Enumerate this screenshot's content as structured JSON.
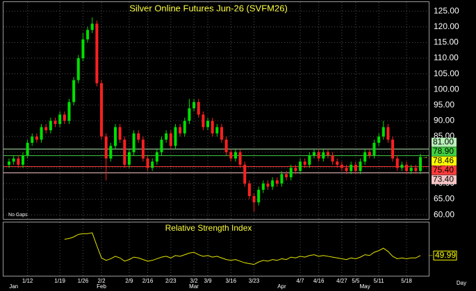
{
  "chart_data": {
    "type": "candlestick",
    "title": "Silver Online Futures Jun-26 (SVFM26)",
    "note": "No Gaps",
    "x_unit": "Day",
    "categories": [
      null,
      null,
      null,
      null,
      "1/12",
      null,
      null,
      null,
      null,
      null,
      null,
      "1/19",
      null,
      null,
      null,
      null,
      "1/26",
      null,
      null,
      null,
      "2/2",
      null,
      null,
      null,
      null,
      null,
      "2/9",
      null,
      null,
      null,
      "2/16",
      null,
      null,
      null,
      null,
      "2/23",
      null,
      null,
      null,
      null,
      "3/2",
      null,
      null,
      "3/9",
      null,
      null,
      null,
      null,
      "3/16",
      null,
      null,
      null,
      null,
      "3/23",
      null,
      null,
      null,
      null,
      null,
      null,
      null,
      null,
      null,
      "4/7",
      null,
      null,
      null,
      "4/16",
      null,
      null,
      null,
      null,
      "4/27",
      null,
      null,
      "5/5",
      null,
      null,
      null,
      null,
      "5/11",
      null,
      null,
      null,
      null,
      null,
      "5/18",
      null,
      null,
      null
    ],
    "month_categories": [
      null,
      "Jan",
      null,
      null,
      null,
      null,
      null,
      null,
      null,
      null,
      null,
      null,
      null,
      null,
      null,
      null,
      null,
      null,
      null,
      null,
      "Feb",
      null,
      null,
      null,
      null,
      null,
      null,
      null,
      null,
      null,
      null,
      null,
      null,
      null,
      null,
      null,
      null,
      null,
      null,
      null,
      "Mar",
      null,
      null,
      null,
      null,
      null,
      null,
      null,
      null,
      null,
      null,
      null,
      null,
      null,
      null,
      null,
      null,
      null,
      null,
      "Apr",
      null,
      null,
      null,
      null,
      null,
      null,
      null,
      null,
      null,
      null,
      null,
      null,
      null,
      null,
      null,
      null,
      null,
      "May",
      null,
      null,
      null,
      null,
      null,
      null,
      null,
      null,
      null,
      null,
      null,
      null
    ],
    "open": [
      76,
      77,
      78,
      76,
      79,
      83,
      85,
      84,
      88,
      87,
      90,
      89,
      92,
      90,
      96,
      103,
      110,
      116,
      119,
      121,
      102,
      85,
      78,
      82,
      88,
      84,
      76,
      80,
      86,
      84,
      78,
      75,
      77,
      80,
      84,
      86,
      82,
      88,
      86,
      90,
      94,
      96,
      92,
      88,
      90,
      86,
      88,
      84,
      80,
      78,
      80,
      76,
      70,
      66,
      64,
      68,
      70,
      69,
      71,
      70,
      73,
      72,
      75,
      74,
      77,
      76,
      79,
      80,
      78,
      80,
      79,
      77,
      76,
      75,
      74,
      76,
      74,
      77,
      80,
      79,
      83,
      85,
      88,
      84,
      78,
      75,
      76,
      74,
      75,
      74
    ],
    "high": [
      78,
      79,
      79,
      80,
      84,
      86,
      86,
      89,
      89,
      91,
      91,
      93,
      93,
      97,
      104,
      111,
      118,
      120,
      123,
      122,
      103,
      86,
      83,
      89,
      89,
      85,
      81,
      87,
      87,
      85,
      79,
      78,
      81,
      85,
      87,
      87,
      89,
      89,
      91,
      97,
      97,
      97,
      93,
      91,
      91,
      89,
      89,
      85,
      81,
      81,
      81,
      77,
      71,
      67,
      69,
      71,
      71,
      72,
      72,
      74,
      74,
      76,
      76,
      78,
      78,
      80,
      81,
      81,
      81,
      81,
      80,
      78,
      77,
      76,
      77,
      77,
      78,
      81,
      81,
      84,
      86,
      90,
      89,
      85,
      79,
      77,
      77,
      76,
      76,
      79.5
    ],
    "low": [
      75,
      76,
      75,
      75,
      78,
      82,
      83,
      83,
      86,
      86,
      88,
      88,
      89,
      89,
      95,
      102,
      109,
      115,
      118,
      101,
      84,
      71,
      77,
      81,
      83,
      75,
      75,
      79,
      83,
      77,
      74,
      74,
      76,
      79,
      83,
      81,
      81,
      85,
      85,
      89,
      93,
      91,
      87,
      87,
      85,
      85,
      83,
      79,
      77,
      77,
      75,
      69,
      65,
      61,
      63,
      67,
      68,
      68,
      69,
      69,
      71,
      71,
      73,
      73,
      75,
      75,
      78,
      77,
      77,
      78,
      76,
      75,
      74,
      73,
      73,
      73,
      73,
      76,
      78,
      78,
      82,
      84,
      83,
      77,
      74,
      74,
      73,
      73,
      73,
      73
    ],
    "close": [
      77,
      78,
      76,
      79,
      83,
      85,
      84,
      88,
      87,
      90,
      89,
      92,
      90,
      96,
      103,
      110,
      116,
      119,
      121,
      102,
      85,
      78,
      82,
      88,
      84,
      76,
      80,
      86,
      84,
      78,
      75,
      77,
      80,
      84,
      86,
      82,
      88,
      86,
      90,
      94,
      96,
      92,
      88,
      90,
      86,
      88,
      84,
      80,
      78,
      80,
      76,
      70,
      66,
      64,
      68,
      70,
      69,
      71,
      70,
      73,
      72,
      75,
      74,
      77,
      76,
      79,
      80,
      78,
      80,
      79,
      77,
      76,
      75,
      74,
      76,
      74,
      77,
      80,
      79,
      83,
      85,
      88,
      84,
      78,
      75,
      76,
      74,
      75,
      74,
      78.46
    ],
    "up_color": "#00e000",
    "down_color": "#ff2020",
    "ylim": [
      58.7,
      127.9
    ],
    "yticks": [
      {
        "value": 60,
        "label": "60.00"
      },
      {
        "value": 65,
        "label": "65.00"
      },
      {
        "value": 70,
        "label": "70.00"
      },
      {
        "value": 75,
        "label": "75.00"
      },
      {
        "value": 80,
        "label": "80.00"
      },
      {
        "value": 85,
        "label": "85.00"
      },
      {
        "value": 90,
        "label": "90.00"
      },
      {
        "value": 95,
        "label": "95.00"
      },
      {
        "value": 100,
        "label": "100.00"
      },
      {
        "value": 105,
        "label": "105.00"
      },
      {
        "value": 110,
        "label": "110.00"
      },
      {
        "value": 115,
        "label": "115.00"
      },
      {
        "value": 120,
        "label": "120.00"
      },
      {
        "value": 125,
        "label": "125.00"
      }
    ],
    "grid": true,
    "levels": [
      {
        "value": 81,
        "label": "81.00",
        "color": "#b8f0b8"
      },
      {
        "value": 78.9,
        "label": "78.90",
        "color": "#40d040"
      },
      {
        "value": 78.46,
        "label": "78.46",
        "color": "#ffff00"
      },
      {
        "value": 75.4,
        "label": "75.40",
        "color": "#ff3b3b"
      },
      {
        "value": 73.4,
        "label": "73.40",
        "color": "#f4c4c4"
      }
    ],
    "rsi": {
      "title": "Relative Strength Index",
      "color": "#e8e800",
      "ylim": [
        25,
        90
      ],
      "last_label": {
        "value": 49.99,
        "label": "49.99"
      },
      "values": [
        null,
        null,
        null,
        null,
        null,
        null,
        null,
        null,
        null,
        null,
        null,
        null,
        70,
        71,
        73,
        76,
        77,
        77,
        78,
        62,
        47,
        44,
        46,
        49,
        47,
        43,
        45,
        48,
        47,
        45,
        43,
        44,
        46,
        48,
        49,
        47,
        50,
        49,
        51,
        53,
        54,
        51,
        49,
        50,
        48,
        49,
        47,
        45,
        44,
        45,
        43,
        41,
        40,
        39,
        42,
        44,
        43,
        45,
        44,
        46,
        45,
        48,
        47,
        49,
        48,
        50,
        51,
        49,
        50,
        49,
        48,
        47,
        46,
        45,
        47,
        46,
        48,
        51,
        50,
        54,
        56,
        59,
        55,
        49,
        46,
        47,
        46,
        47,
        47,
        49.99
      ]
    }
  }
}
